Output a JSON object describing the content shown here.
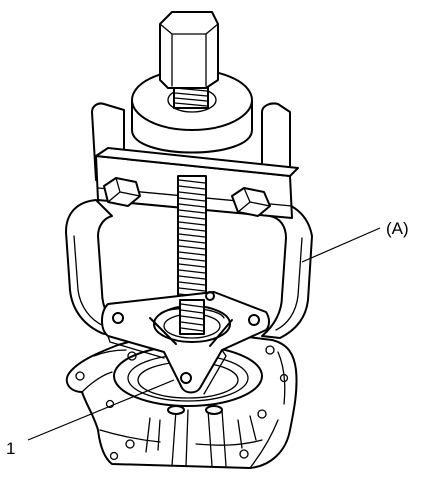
{
  "diagram": {
    "labels": {
      "tool_a": "(A)",
      "part_1": "1"
    }
  }
}
